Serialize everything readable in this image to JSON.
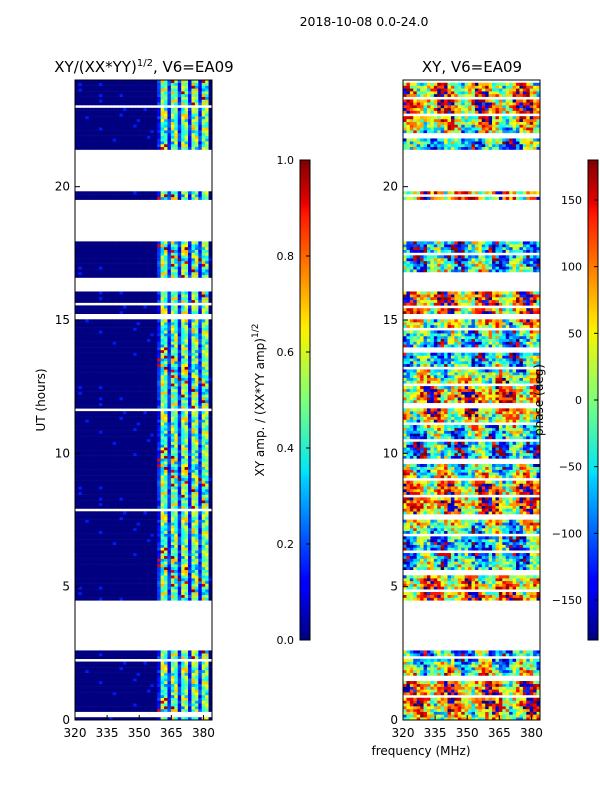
{
  "figure": {
    "suptitle": "2018-10-08 0.0-24.0",
    "shared_xlabel": "frequency (MHz)"
  },
  "chart_data": [
    {
      "type": "heatmap",
      "title_parts": [
        "XY/(XX*YY)",
        "1/2",
        ", V6=EA09"
      ],
      "ylabel": "UT (hours)",
      "xlim": [
        320,
        384
      ],
      "ylim": [
        0,
        24
      ],
      "xticks": [
        320,
        335,
        350,
        365,
        380
      ],
      "yticks": [
        0,
        5,
        10,
        15,
        20
      ],
      "colorbar": {
        "label_parts": [
          "XY amp. / (XX*YY amp)",
          "1/2"
        ],
        "range": [
          0.0,
          1.0
        ],
        "ticks": [
          "0.0",
          "0.2",
          "0.4",
          "0.6",
          "0.8",
          "1.0"
        ],
        "colormap": "jet"
      },
      "data_gaps_hours": [
        [
          2.6,
          4.5
        ],
        [
          15.0,
          15.2
        ],
        [
          16.1,
          16.6
        ],
        [
          18.0,
          19.5
        ],
        [
          19.8,
          21.4
        ]
      ],
      "high_signal_freq_band_mhz": [
        359,
        382
      ]
    },
    {
      "type": "heatmap",
      "title": "XY, V6=EA09",
      "ylabel": "",
      "xlim": [
        320,
        384
      ],
      "ylim": [
        0,
        24
      ],
      "xticks": [
        320,
        335,
        350,
        365,
        380
      ],
      "yticks": [
        0,
        5,
        10,
        15,
        20
      ],
      "colorbar": {
        "label": "phase (deg)",
        "range": [
          -180,
          180
        ],
        "ticks": [
          "150",
          "100",
          "50",
          "0",
          "−50",
          "−100",
          "−150"
        ],
        "colormap": "jet"
      },
      "data_gaps_hours": [
        [
          2.6,
          4.5
        ],
        [
          15.0,
          15.2
        ],
        [
          16.1,
          16.6
        ],
        [
          18.0,
          19.5
        ],
        [
          19.8,
          21.4
        ]
      ]
    }
  ]
}
